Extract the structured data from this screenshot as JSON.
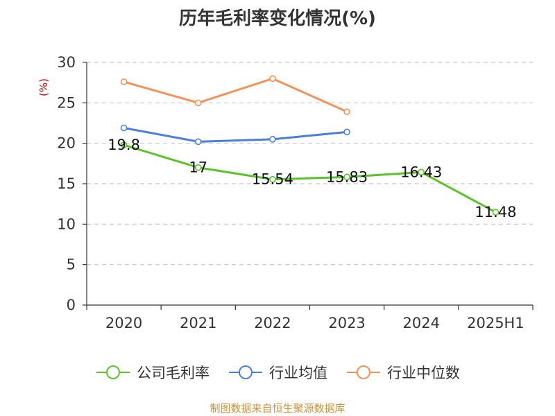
{
  "title": "历年毛利率变化情况(%)",
  "source_note": "制图数据来自恒生聚源数据库",
  "colors": {
    "company": "#5cc22a",
    "industry_avg": "#4a7fdc",
    "industry_median": "#f4925a",
    "axis": "#333333",
    "grid": "#c8c8c8",
    "ylabel": "#cc0000"
  },
  "chart_data": {
    "type": "line",
    "title": "历年毛利率变化情况(%)",
    "xlabel": "",
    "ylabel": "(%)",
    "categories": [
      "2020",
      "2021",
      "2022",
      "2023",
      "2024",
      "2025H1"
    ],
    "ylim": [
      0,
      30
    ],
    "yticks": [
      0,
      5,
      10,
      15,
      20,
      25,
      30
    ],
    "grid": true,
    "legend_position": "bottom",
    "series": [
      {
        "name": "公司毛利率",
        "color": "#5cc22a",
        "labels": true,
        "values": [
          19.8,
          17,
          15.54,
          15.83,
          16.43,
          11.48
        ]
      },
      {
        "name": "行业均值",
        "color": "#4a7fdc",
        "labels": false,
        "values": [
          21.9,
          20.2,
          20.5,
          21.4,
          null,
          null
        ]
      },
      {
        "name": "行业中位数",
        "color": "#f4925a",
        "labels": false,
        "values": [
          27.6,
          25,
          28,
          23.9,
          null,
          null
        ]
      }
    ]
  }
}
